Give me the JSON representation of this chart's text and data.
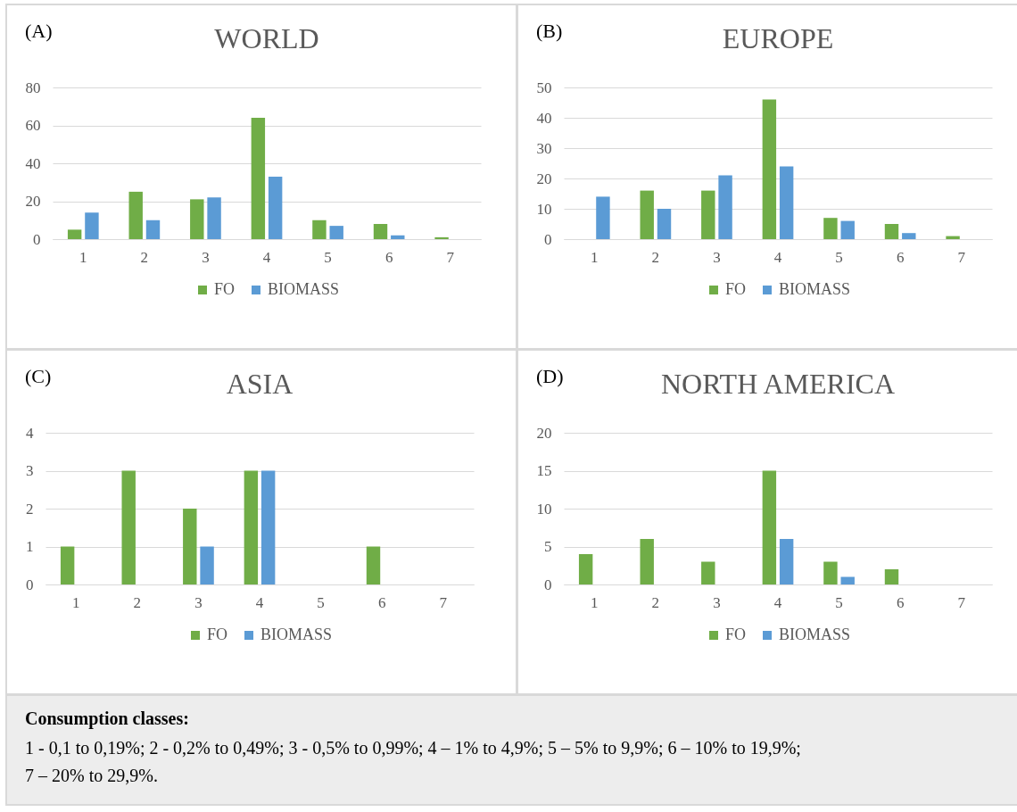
{
  "chart_data": [
    {
      "type": "bar",
      "title": "WORLD",
      "annotations": [
        "(A)"
      ],
      "categories": [
        "1",
        "2",
        "3",
        "4",
        "5",
        "6",
        "7"
      ],
      "series": [
        {
          "name": "FO",
          "color": "#70ad47",
          "values": [
            5,
            25,
            21,
            64,
            10,
            8,
            1
          ]
        },
        {
          "name": "BIOMASS",
          "color": "#5b9bd5",
          "values": [
            14,
            10,
            22,
            33,
            7,
            2,
            0
          ]
        }
      ],
      "ylim": [
        0,
        80
      ],
      "yticks": [
        0,
        20,
        40,
        60,
        80
      ],
      "grid": "y",
      "legend": "bottom"
    },
    {
      "type": "bar",
      "title": "EUROPE",
      "annotations": [
        "(B)"
      ],
      "categories": [
        "1",
        "2",
        "3",
        "4",
        "5",
        "6",
        "7"
      ],
      "series": [
        {
          "name": "FO",
          "color": "#70ad47",
          "values": [
            0,
            16,
            16,
            46,
            7,
            5,
            1
          ]
        },
        {
          "name": "BIOMASS",
          "color": "#5b9bd5",
          "values": [
            14,
            10,
            21,
            24,
            6,
            2,
            0
          ]
        }
      ],
      "ylim": [
        0,
        50
      ],
      "yticks": [
        0,
        10,
        20,
        30,
        40,
        50
      ],
      "grid": "y",
      "legend": "bottom"
    },
    {
      "type": "bar",
      "title": "ASIA",
      "annotations": [
        "(C)"
      ],
      "categories": [
        "1",
        "2",
        "3",
        "4",
        "5",
        "6",
        "7"
      ],
      "series": [
        {
          "name": "FO",
          "color": "#70ad47",
          "values": [
            1,
            3,
            2,
            3,
            0,
            1,
            0
          ]
        },
        {
          "name": "BIOMASS",
          "color": "#5b9bd5",
          "values": [
            0,
            0,
            1,
            3,
            0,
            0,
            0
          ]
        }
      ],
      "ylim": [
        0,
        4
      ],
      "yticks": [
        0,
        1,
        2,
        3,
        4
      ],
      "grid": "y",
      "legend": "bottom"
    },
    {
      "type": "bar",
      "title": "NORTH AMERICA",
      "annotations": [
        "(D)"
      ],
      "categories": [
        "1",
        "2",
        "3",
        "4",
        "5",
        "6",
        "7"
      ],
      "series": [
        {
          "name": "FO",
          "color": "#70ad47",
          "values": [
            4,
            6,
            3,
            15,
            3,
            2,
            0
          ]
        },
        {
          "name": "BIOMASS",
          "color": "#5b9bd5",
          "values": [
            0,
            0,
            0,
            6,
            1,
            0,
            0
          ]
        }
      ],
      "ylim": [
        0,
        20
      ],
      "yticks": [
        0,
        5,
        10,
        15,
        20
      ],
      "grid": "y",
      "legend": "bottom"
    },
    {
      "type": "other",
      "title": "Consumption classes:",
      "annotations": [
        "1 - 0,1 to 0,19%; 2 - 0,2% to 0,49%; 3 - 0,5% to 0,99%; 4 – 1% to 4,9%; 5 – 5% to 9,9%; 6 – 10% to 19,9%;",
        "7 – 20% to 29,9%."
      ]
    }
  ]
}
